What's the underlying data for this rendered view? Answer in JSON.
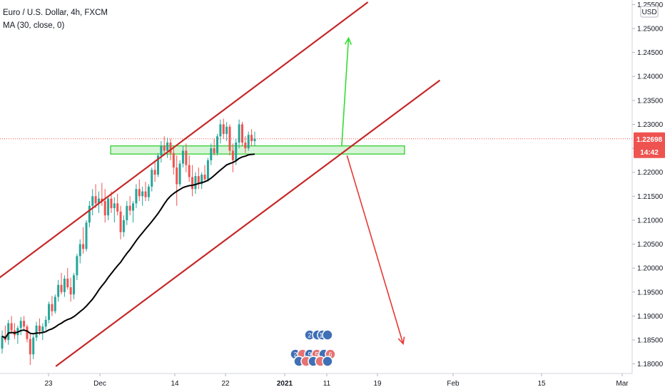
{
  "header": {
    "symbol_line": "Euro / U.S. Dollar, 4h, FXCM",
    "indicator_line": "MA (30, close, 0)"
  },
  "chart_data": {
    "type": "candlestick",
    "title": "Euro / U.S. Dollar, 4h, FXCM",
    "currency_label": "USD",
    "ylim": [
      1.1795,
      1.2555
    ],
    "price_ticks": [
      "1.25500",
      "1.25000",
      "1.24500",
      "1.24000",
      "1.23500",
      "1.23000",
      "1.22500",
      "1.22000",
      "1.21500",
      "1.21000",
      "1.20500",
      "1.20000",
      "1.19500",
      "1.19000",
      "1.18500",
      "1.18000"
    ],
    "time_ticks": [
      "23",
      "Dec",
      "14",
      "22",
      "2021",
      "11",
      "19",
      "Feb",
      "15",
      "Mar"
    ],
    "last_price": "1.22698",
    "countdown": "14:42",
    "colors": {
      "up": "#26a69a",
      "down": "#ef5350",
      "ma": "#000000",
      "channel": "#c62828",
      "zone_fill": "#c8f0c8",
      "zone_border": "#22cc22",
      "arrow_up": "#33dd33",
      "arrow_down": "#e53935",
      "last_price": "#ef5350"
    },
    "zone": {
      "low": 1.2238,
      "high": 1.2255
    },
    "candles_ohlc": [
      [
        1.1832,
        1.187,
        1.1822,
        1.1858
      ],
      [
        1.1858,
        1.188,
        1.1845,
        1.185
      ],
      [
        1.185,
        1.1892,
        1.184,
        1.1885
      ],
      [
        1.1885,
        1.19,
        1.1862,
        1.187
      ],
      [
        1.187,
        1.1885,
        1.1852,
        1.186
      ],
      [
        1.186,
        1.188,
        1.1842,
        1.1875
      ],
      [
        1.1875,
        1.1898,
        1.186,
        1.189
      ],
      [
        1.189,
        1.19,
        1.187,
        1.1878
      ],
      [
        1.1878,
        1.1882,
        1.1845,
        1.1852
      ],
      [
        1.1852,
        1.1862,
        1.1798,
        1.182
      ],
      [
        1.182,
        1.186,
        1.181,
        1.1855
      ],
      [
        1.1855,
        1.1888,
        1.1848,
        1.188
      ],
      [
        1.188,
        1.1895,
        1.186,
        1.1868
      ],
      [
        1.1868,
        1.1885,
        1.185,
        1.1878
      ],
      [
        1.1878,
        1.19,
        1.187,
        1.1892
      ],
      [
        1.1892,
        1.193,
        1.1885,
        1.1925
      ],
      [
        1.1925,
        1.1942,
        1.19,
        1.191
      ],
      [
        1.191,
        1.1945,
        1.1905,
        1.194
      ],
      [
        1.194,
        1.1975,
        1.193,
        1.1965
      ],
      [
        1.1965,
        1.199,
        1.1945,
        1.195
      ],
      [
        1.195,
        1.1985,
        1.194,
        1.1978
      ],
      [
        1.1978,
        1.2,
        1.1955,
        1.196
      ],
      [
        1.196,
        1.198,
        1.193,
        1.1945
      ],
      [
        1.1945,
        1.199,
        1.1935,
        1.1985
      ],
      [
        1.1985,
        1.203,
        1.1975,
        1.2025
      ],
      [
        1.2025,
        1.206,
        1.201,
        1.205
      ],
      [
        1.205,
        1.2085,
        1.203,
        1.204
      ],
      [
        1.204,
        1.21,
        1.2035,
        1.2095
      ],
      [
        1.2095,
        1.214,
        1.2085,
        1.213
      ],
      [
        1.213,
        1.2165,
        1.211,
        1.215
      ],
      [
        1.215,
        1.2175,
        1.2125,
        1.2135
      ],
      [
        1.2135,
        1.216,
        1.2115,
        1.2145
      ],
      [
        1.2145,
        1.2178,
        1.213,
        1.214
      ],
      [
        1.214,
        1.2165,
        1.2095,
        1.211
      ],
      [
        1.211,
        1.215,
        1.21,
        1.2145
      ],
      [
        1.2145,
        1.216,
        1.2115,
        1.2125
      ],
      [
        1.2125,
        1.2148,
        1.2095,
        1.2135
      ],
      [
        1.2135,
        1.2155,
        1.211,
        1.2118
      ],
      [
        1.2118,
        1.213,
        1.206,
        1.2075
      ],
      [
        1.2075,
        1.211,
        1.2065,
        1.21
      ],
      [
        1.21,
        1.214,
        1.209,
        1.213
      ],
      [
        1.213,
        1.215,
        1.211,
        1.212
      ],
      [
        1.212,
        1.214,
        1.2095,
        1.2135
      ],
      [
        1.2135,
        1.2175,
        1.2125,
        1.2165
      ],
      [
        1.2165,
        1.2185,
        1.214,
        1.215
      ],
      [
        1.215,
        1.217,
        1.213,
        1.216
      ],
      [
        1.216,
        1.218,
        1.214,
        1.2148
      ],
      [
        1.2148,
        1.2175,
        1.214,
        1.217
      ],
      [
        1.217,
        1.221,
        1.216,
        1.2205
      ],
      [
        1.2205,
        1.2225,
        1.218,
        1.2195
      ],
      [
        1.2195,
        1.224,
        1.219,
        1.2235
      ],
      [
        1.2235,
        1.2265,
        1.222,
        1.2255
      ],
      [
        1.2255,
        1.2275,
        1.2235,
        1.2245
      ],
      [
        1.2245,
        1.2272,
        1.223,
        1.2262
      ],
      [
        1.2262,
        1.227,
        1.2225,
        1.224
      ],
      [
        1.224,
        1.225,
        1.2195,
        1.221
      ],
      [
        1.221,
        1.2235,
        1.213,
        1.2175
      ],
      [
        1.2175,
        1.2225,
        1.217,
        1.2218
      ],
      [
        1.2218,
        1.2255,
        1.221,
        1.2245
      ],
      [
        1.2245,
        1.226,
        1.22,
        1.2215
      ],
      [
        1.2215,
        1.2235,
        1.218,
        1.219
      ],
      [
        1.219,
        1.2215,
        1.215,
        1.2165
      ],
      [
        1.2165,
        1.22,
        1.2155,
        1.2192
      ],
      [
        1.2192,
        1.221,
        1.2165,
        1.2175
      ],
      [
        1.2175,
        1.22,
        1.2165,
        1.2195
      ],
      [
        1.2195,
        1.2215,
        1.218,
        1.2185
      ],
      [
        1.2185,
        1.223,
        1.218,
        1.2225
      ],
      [
        1.2225,
        1.226,
        1.2215,
        1.225
      ],
      [
        1.225,
        1.227,
        1.2235,
        1.224
      ],
      [
        1.224,
        1.228,
        1.2235,
        1.2275
      ],
      [
        1.2275,
        1.231,
        1.226,
        1.23
      ],
      [
        1.23,
        1.2312,
        1.227,
        1.228
      ],
      [
        1.228,
        1.2305,
        1.2265,
        1.2295
      ],
      [
        1.2295,
        1.23,
        1.2235,
        1.2245
      ],
      [
        1.2245,
        1.226,
        1.22,
        1.2225
      ],
      [
        1.2225,
        1.227,
        1.2215,
        1.2262
      ],
      [
        1.2262,
        1.231,
        1.225,
        1.23
      ],
      [
        1.23,
        1.2305,
        1.2255,
        1.2262
      ],
      [
        1.2262,
        1.2275,
        1.224,
        1.225
      ],
      [
        1.225,
        1.2285,
        1.2245,
        1.2278
      ],
      [
        1.2278,
        1.229,
        1.2255,
        1.2265
      ],
      [
        1.2265,
        1.2285,
        1.2255,
        1.227
      ]
    ],
    "ma_note": "MA 30 close",
    "channel_lines": [
      {
        "name": "upper",
        "p1": {
          "bar": -3.9,
          "price": 1.1965
        },
        "p2": {
          "bar": 117.3,
          "price": 1.2555
        }
      },
      {
        "name": "lower",
        "p1": {
          "bar": 17.2,
          "price": 1.1795
        },
        "p2": {
          "bar": 140.4,
          "price": 1.2392
        }
      }
    ],
    "arrows": [
      {
        "name": "bullish",
        "from": {
          "bar": 108.9,
          "price": 1.2255
        },
        "to": {
          "bar": 111.1,
          "price": 1.248
        }
      },
      {
        "name": "bearish",
        "from": {
          "bar": 110.6,
          "price": 1.2235
        },
        "to": {
          "bar": 128.6,
          "price": 1.1842
        }
      }
    ],
    "events": {
      "row1": [
        "2",
        "11"
      ],
      "row2": [
        "2",
        "9",
        "5",
        "6"
      ]
    }
  }
}
